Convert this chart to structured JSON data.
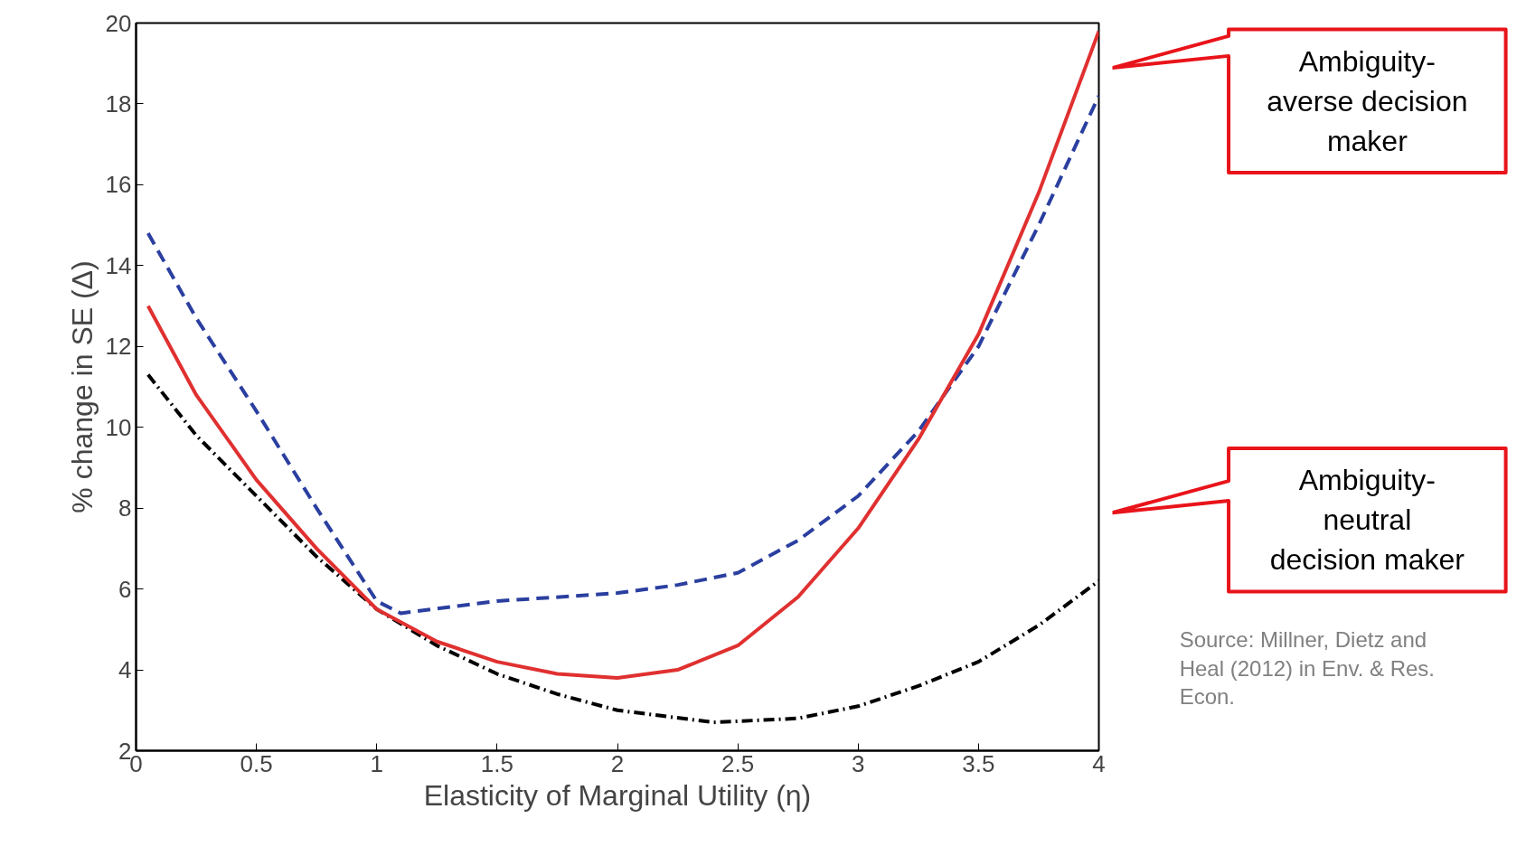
{
  "chart_data": {
    "type": "line",
    "xlabel": "Elasticity of Marginal Utility (η)",
    "ylabel": "% change in SE (Δ)",
    "xlim": [
      0,
      4
    ],
    "xticks": [
      0,
      0.5,
      1,
      1.5,
      2,
      2.5,
      3,
      3.5,
      4
    ],
    "ylim": [
      2,
      20
    ],
    "yticks": [
      2,
      4,
      6,
      8,
      10,
      12,
      14,
      16,
      18,
      20
    ],
    "grid": false,
    "series": [
      {
        "color": "#2b3fa0",
        "line_style": "dashed",
        "x": [
          0.05,
          0.25,
          0.5,
          0.75,
          1.0,
          1.1,
          1.5,
          2.0,
          2.25,
          2.5,
          2.75,
          3.0,
          3.25,
          3.5,
          3.75,
          4.0
        ],
        "values": [
          14.8,
          12.7,
          10.4,
          8.0,
          5.7,
          5.4,
          5.7,
          5.9,
          6.1,
          6.4,
          7.2,
          8.3,
          9.9,
          12.0,
          15.0,
          18.2
        ]
      },
      {
        "color": "#000000",
        "line_style": "dashdot",
        "x": [
          0.05,
          0.25,
          0.5,
          0.75,
          1.0,
          1.25,
          1.5,
          1.75,
          2.0,
          2.4,
          2.75,
          3.0,
          3.25,
          3.5,
          3.75,
          4.0
        ],
        "values": [
          11.3,
          9.8,
          8.3,
          6.8,
          5.5,
          4.6,
          3.9,
          3.4,
          3.0,
          2.7,
          2.8,
          3.1,
          3.6,
          4.2,
          5.1,
          6.2
        ]
      },
      {
        "color": "#e03030",
        "line_style": "solid",
        "x": [
          0.05,
          0.25,
          0.5,
          0.75,
          1.0,
          1.25,
          1.5,
          1.75,
          2.0,
          2.25,
          2.5,
          2.75,
          3.0,
          3.25,
          3.5,
          3.75,
          4.0
        ],
        "values": [
          13.0,
          10.8,
          8.7,
          7.0,
          5.5,
          4.7,
          4.2,
          3.9,
          3.8,
          4.0,
          4.6,
          5.8,
          7.5,
          9.7,
          12.3,
          15.8,
          19.8
        ]
      }
    ],
    "annotations": [
      "Ambiguity-averse decision maker",
      "Ambiguity-neutral decision maker",
      "Source: Millner, Dietz and Heal (2012) in Env. & Res. Econ."
    ]
  }
}
